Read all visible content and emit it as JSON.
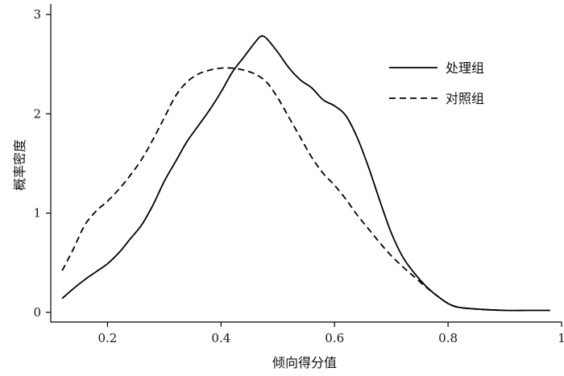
{
  "chart_data": {
    "type": "line",
    "title": "",
    "xlabel": "倾向得分值",
    "ylabel": "概率密度",
    "xlim": [
      0.1,
      1.0
    ],
    "ylim": [
      0,
      3
    ],
    "x_ticks": [
      "0.2",
      "0.4",
      "0.6",
      "0.8",
      "1"
    ],
    "y_ticks": [
      "0",
      "1",
      "2",
      "3"
    ],
    "grid": false,
    "legend_position": "top-right",
    "series": [
      {
        "name": "处理组",
        "line_style": "solid",
        "color": "#000000",
        "points": [
          [
            0.12,
            0.14
          ],
          [
            0.14,
            0.24
          ],
          [
            0.16,
            0.33
          ],
          [
            0.18,
            0.41
          ],
          [
            0.2,
            0.49
          ],
          [
            0.22,
            0.6
          ],
          [
            0.24,
            0.74
          ],
          [
            0.26,
            0.88
          ],
          [
            0.28,
            1.08
          ],
          [
            0.3,
            1.32
          ],
          [
            0.32,
            1.52
          ],
          [
            0.34,
            1.72
          ],
          [
            0.36,
            1.88
          ],
          [
            0.38,
            2.04
          ],
          [
            0.4,
            2.22
          ],
          [
            0.42,
            2.42
          ],
          [
            0.44,
            2.57
          ],
          [
            0.46,
            2.72
          ],
          [
            0.47,
            2.78
          ],
          [
            0.48,
            2.76
          ],
          [
            0.5,
            2.62
          ],
          [
            0.52,
            2.46
          ],
          [
            0.54,
            2.34
          ],
          [
            0.56,
            2.26
          ],
          [
            0.58,
            2.14
          ],
          [
            0.6,
            2.08
          ],
          [
            0.62,
            1.98
          ],
          [
            0.64,
            1.76
          ],
          [
            0.66,
            1.46
          ],
          [
            0.68,
            1.12
          ],
          [
            0.7,
            0.8
          ],
          [
            0.72,
            0.56
          ],
          [
            0.74,
            0.4
          ],
          [
            0.76,
            0.27
          ],
          [
            0.78,
            0.17
          ],
          [
            0.8,
            0.09
          ],
          [
            0.82,
            0.05
          ],
          [
            0.86,
            0.03
          ],
          [
            0.9,
            0.02
          ],
          [
            0.94,
            0.02
          ],
          [
            0.98,
            0.02
          ]
        ]
      },
      {
        "name": "对照组",
        "line_style": "dashed",
        "color": "#000000",
        "points": [
          [
            0.12,
            0.42
          ],
          [
            0.14,
            0.64
          ],
          [
            0.16,
            0.88
          ],
          [
            0.18,
            1.02
          ],
          [
            0.2,
            1.12
          ],
          [
            0.22,
            1.24
          ],
          [
            0.24,
            1.38
          ],
          [
            0.26,
            1.54
          ],
          [
            0.28,
            1.74
          ],
          [
            0.3,
            1.96
          ],
          [
            0.32,
            2.18
          ],
          [
            0.34,
            2.32
          ],
          [
            0.36,
            2.4
          ],
          [
            0.38,
            2.44
          ],
          [
            0.4,
            2.46
          ],
          [
            0.42,
            2.46
          ],
          [
            0.44,
            2.44
          ],
          [
            0.46,
            2.4
          ],
          [
            0.48,
            2.32
          ],
          [
            0.5,
            2.16
          ],
          [
            0.52,
            1.96
          ],
          [
            0.54,
            1.76
          ],
          [
            0.56,
            1.56
          ],
          [
            0.58,
            1.4
          ],
          [
            0.6,
            1.28
          ],
          [
            0.62,
            1.14
          ],
          [
            0.64,
            0.98
          ],
          [
            0.66,
            0.84
          ],
          [
            0.68,
            0.7
          ],
          [
            0.7,
            0.57
          ],
          [
            0.72,
            0.46
          ],
          [
            0.74,
            0.36
          ],
          [
            0.76,
            0.26
          ],
          [
            0.78,
            0.17
          ],
          [
            0.8,
            0.09
          ],
          [
            0.82,
            0.05
          ],
          [
            0.86,
            0.03
          ],
          [
            0.9,
            0.02
          ]
        ]
      }
    ]
  }
}
